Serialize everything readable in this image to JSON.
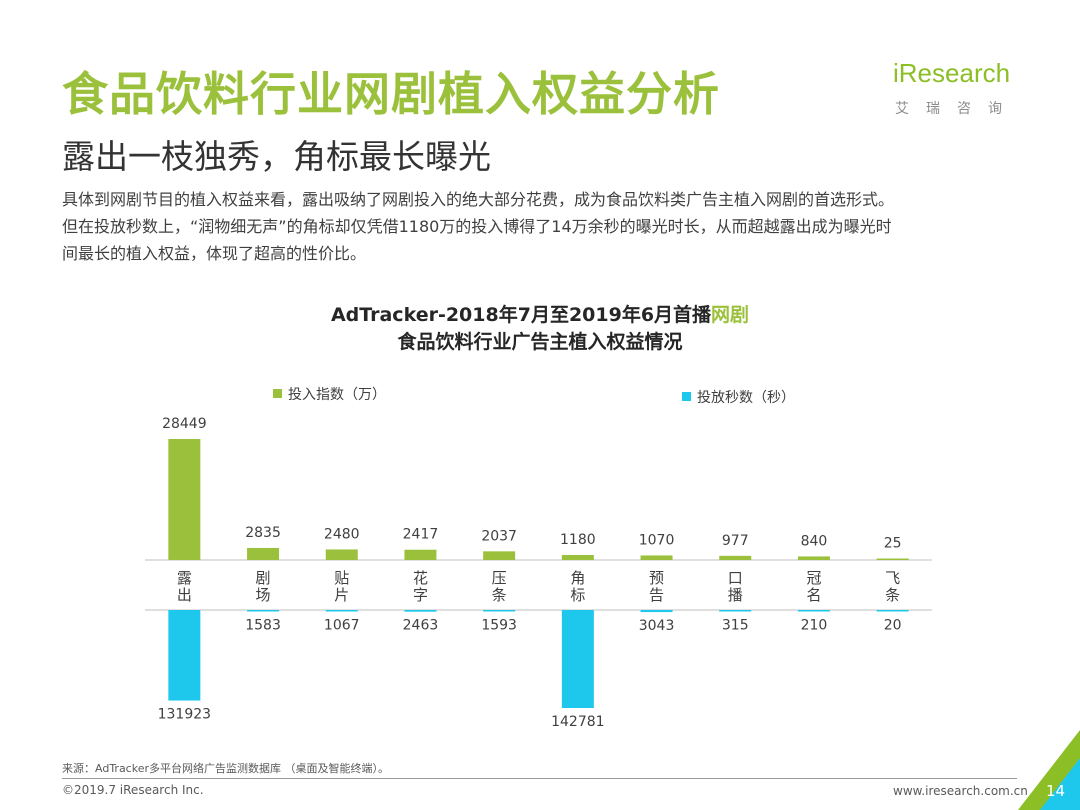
{
  "header": {
    "title": "食品饮料行业网剧植入权益分析",
    "subtitle": "露出一枝独秀，角标最长曝光",
    "body_lines": [
      "具体到网剧节目的植入权益来看，露出吸纳了网剧投入的绝大部分花费，成为食品饮料类广告主植入网剧的首选形式。",
      "但在投放秒数上，“润物细无声”的角标却仅凭借1180万的投入博得了14万余秒的曝光时长，从而超越露出成为曝光时",
      "间最长的植入权益，体现了超高的性价比。"
    ]
  },
  "logo": {
    "brand_i": "i",
    "brand_rest": "Research",
    "cn": "艾瑞咨询"
  },
  "chart_data": {
    "type": "bar",
    "title_line1_prefix": "AdTracker-2018年7月至2019年6月首播",
    "title_line1_highlight": "网剧",
    "title_line2": "食品饮料行业广告主植入权益情况",
    "categories": [
      "露出",
      "剧场",
      "贴片",
      "花字",
      "压条",
      "角标",
      "预告",
      "口播",
      "冠名",
      "飞条"
    ],
    "series": [
      {
        "name": "投入指数（万）",
        "direction": "up",
        "color": "#9bc13c",
        "values": [
          28449,
          2835,
          2480,
          2417,
          2037,
          1180,
          1070,
          977,
          840,
          25
        ]
      },
      {
        "name": "投放秒数（秒）",
        "direction": "down",
        "color": "#1ec8ec",
        "values": [
          131923,
          1583,
          1067,
          2463,
          1593,
          142781,
          3043,
          315,
          210,
          20
        ]
      }
    ]
  },
  "footer": {
    "source": "来源：AdTracker多平台网络广告监测数据库 （桌面及智能终端）。",
    "copyright": "©2019.7 iResearch Inc.",
    "url": "www.iresearch.com.cn",
    "page": "14"
  },
  "colors": {
    "green": "#9bc13c",
    "blue": "#1ec8ec",
    "corner_green": "#8cbf26"
  }
}
